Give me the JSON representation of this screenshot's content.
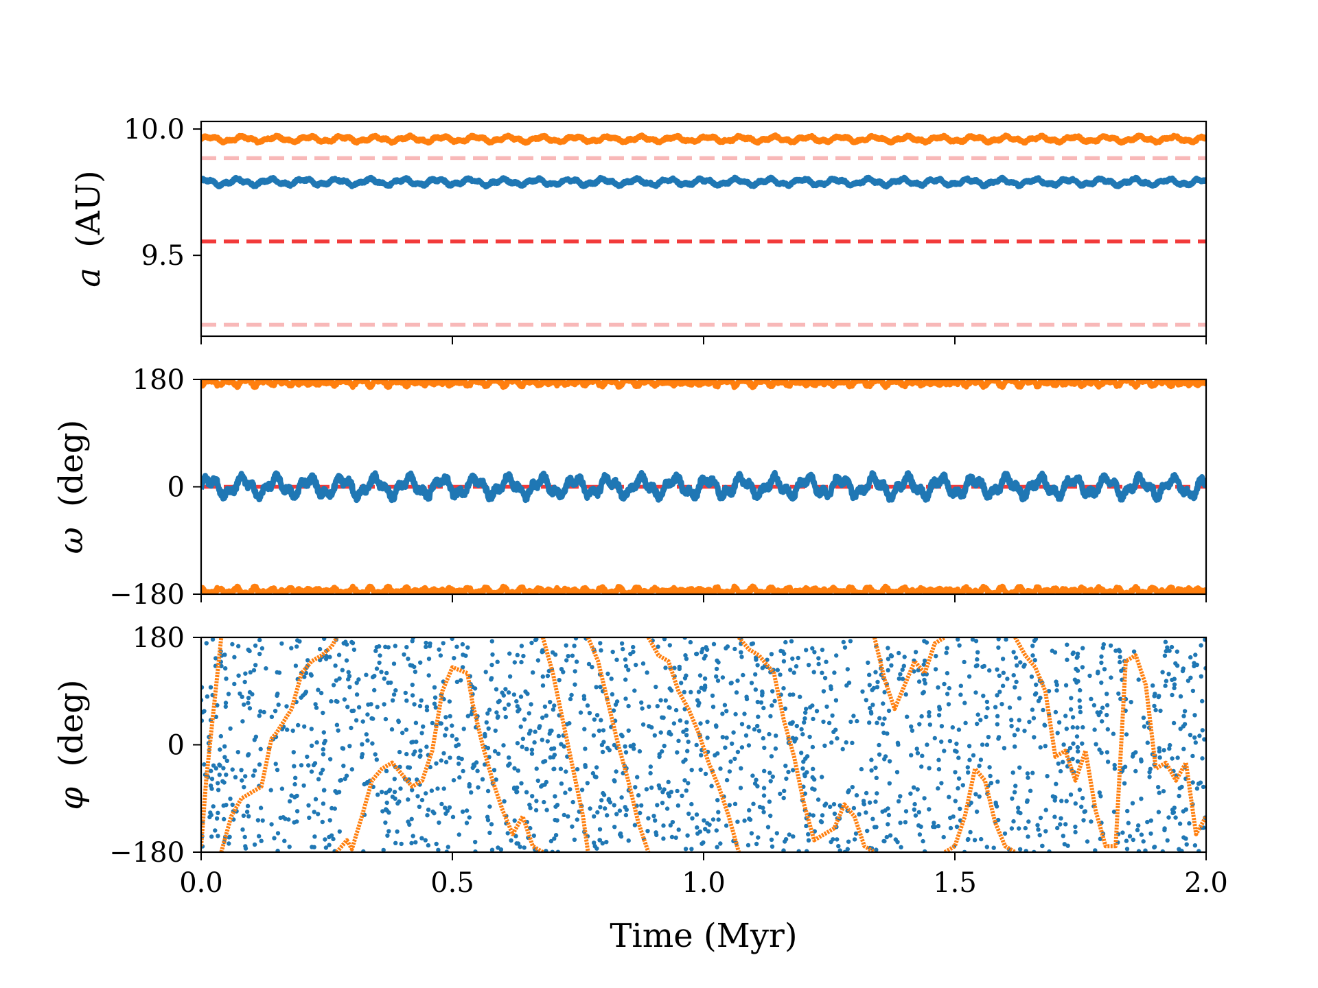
{
  "chart_data": [
    {
      "type": "scatter",
      "panel": "top",
      "ylabel_symbol": "a",
      "ylabel_unit": "(AU)",
      "xlim": [
        0,
        2
      ],
      "ylim": [
        9.18,
        10.03
      ],
      "yticks": [
        {
          "value": 9.5,
          "label": "9.5"
        },
        {
          "value": 10.0,
          "label": "10.0"
        }
      ],
      "reference_lines": [
        {
          "y": 9.885,
          "color": "#f8b8b8",
          "style": "dashed"
        },
        {
          "y": 9.555,
          "color": "#f23a3a",
          "style": "dashed"
        },
        {
          "y": 9.225,
          "color": "#f8b8b8",
          "style": "dashed"
        }
      ],
      "series": [
        {
          "color": "#ff7f0e",
          "mean": 9.96,
          "amplitude": 0.012
        },
        {
          "color": "#1f77b4",
          "mean": 9.79,
          "amplitude": 0.014
        }
      ]
    },
    {
      "type": "scatter",
      "panel": "middle",
      "ylabel_symbol": "ω",
      "ylabel_unit": "(deg)",
      "xlim": [
        0,
        2
      ],
      "ylim": [
        -180,
        180
      ],
      "yticks": [
        {
          "value": -180,
          "label": "−180"
        },
        {
          "value": 0,
          "label": "0"
        },
        {
          "value": 180,
          "label": "180"
        }
      ],
      "reference_lines": [
        {
          "y": 0,
          "color": "#f23a3a",
          "style": "dashed"
        }
      ],
      "series": [
        {
          "color": "#1f77b4",
          "mean": 0,
          "amplitude": 18
        },
        {
          "color": "#ff7f0e",
          "mean": 180,
          "amplitude": 10,
          "wraps": true
        }
      ]
    },
    {
      "type": "scatter",
      "panel": "bottom",
      "ylabel_symbol": "φ",
      "ylabel_unit": "(deg)",
      "xlabel": "Time (Myr)",
      "xlim": [
        0,
        2
      ],
      "ylim": [
        -180,
        180
      ],
      "xticks": [
        {
          "value": 0.0,
          "label": "0.0"
        },
        {
          "value": 0.5,
          "label": "0.5"
        },
        {
          "value": 1.0,
          "label": "1.0"
        },
        {
          "value": 1.5,
          "label": "1.5"
        },
        {
          "value": 2.0,
          "label": "2.0"
        }
      ],
      "yticks": [
        {
          "value": -180,
          "label": "−180"
        },
        {
          "value": 0,
          "label": "0"
        },
        {
          "value": 180,
          "label": "180"
        }
      ],
      "series": [
        {
          "color": "#1f77b4",
          "distribution": "uniform",
          "points": 1900
        },
        {
          "color": "#ff7f0e",
          "distribution": "circulating",
          "path": [
            [
              0.0,
              -170
            ],
            [
              0.01,
              -60
            ],
            [
              0.02,
              20
            ],
            [
              0.03,
              100
            ],
            [
              0.04,
              180
            ],
            [
              0.04,
              -180
            ],
            [
              0.06,
              -120
            ],
            [
              0.08,
              -90
            ],
            [
              0.1,
              -80
            ],
            [
              0.12,
              -70
            ],
            [
              0.14,
              10
            ],
            [
              0.15,
              20
            ],
            [
              0.18,
              60
            ],
            [
              0.2,
              120
            ],
            [
              0.22,
              140
            ],
            [
              0.24,
              150
            ],
            [
              0.26,
              165
            ],
            [
              0.27,
              180
            ],
            [
              0.27,
              -180
            ],
            [
              0.29,
              -160
            ],
            [
              0.3,
              -175
            ],
            [
              0.32,
              -120
            ],
            [
              0.34,
              -60
            ],
            [
              0.36,
              -40
            ],
            [
              0.38,
              -30
            ],
            [
              0.42,
              -70
            ],
            [
              0.44,
              -60
            ],
            [
              0.46,
              -10
            ],
            [
              0.48,
              90
            ],
            [
              0.5,
              130
            ],
            [
              0.53,
              120
            ],
            [
              0.54,
              70
            ],
            [
              0.56,
              0
            ],
            [
              0.58,
              -60
            ],
            [
              0.6,
              -110
            ],
            [
              0.62,
              -150
            ],
            [
              0.64,
              -120
            ],
            [
              0.66,
              -170
            ],
            [
              0.68,
              -180
            ],
            [
              0.68,
              180
            ],
            [
              0.7,
              120
            ],
            [
              0.72,
              40
            ],
            [
              0.74,
              -40
            ],
            [
              0.76,
              -120
            ],
            [
              0.77,
              -180
            ],
            [
              0.77,
              180
            ],
            [
              0.79,
              140
            ],
            [
              0.81,
              70
            ],
            [
              0.83,
              0
            ],
            [
              0.85,
              -60
            ],
            [
              0.87,
              -130
            ],
            [
              0.89,
              -180
            ],
            [
              0.89,
              180
            ],
            [
              0.91,
              150
            ],
            [
              0.93,
              140
            ],
            [
              0.95,
              90
            ],
            [
              0.97,
              60
            ],
            [
              0.99,
              20
            ],
            [
              1.01,
              -30
            ],
            [
              1.03,
              -70
            ],
            [
              1.05,
              -120
            ],
            [
              1.07,
              -180
            ],
            [
              1.07,
              180
            ],
            [
              1.09,
              160
            ],
            [
              1.11,
              150
            ],
            [
              1.14,
              120
            ],
            [
              1.16,
              40
            ],
            [
              1.18,
              -20
            ],
            [
              1.2,
              -100
            ],
            [
              1.22,
              -160
            ],
            [
              1.24,
              -150
            ],
            [
              1.26,
              -140
            ],
            [
              1.28,
              -100
            ],
            [
              1.3,
              -120
            ],
            [
              1.32,
              -170
            ],
            [
              1.34,
              -180
            ],
            [
              1.34,
              180
            ],
            [
              1.36,
              110
            ],
            [
              1.38,
              60
            ],
            [
              1.4,
              100
            ],
            [
              1.42,
              140
            ],
            [
              1.44,
              120
            ],
            [
              1.46,
              170
            ],
            [
              1.48,
              180
            ],
            [
              1.48,
              -180
            ],
            [
              1.5,
              -170
            ],
            [
              1.52,
              -120
            ],
            [
              1.54,
              -40
            ],
            [
              1.56,
              -60
            ],
            [
              1.58,
              -130
            ],
            [
              1.6,
              -170
            ],
            [
              1.62,
              -180
            ],
            [
              1.62,
              180
            ],
            [
              1.64,
              150
            ],
            [
              1.66,
              130
            ],
            [
              1.68,
              90
            ],
            [
              1.7,
              -20
            ],
            [
              1.72,
              -10
            ],
            [
              1.74,
              -60
            ],
            [
              1.76,
              -10
            ],
            [
              1.78,
              -110
            ],
            [
              1.8,
              -170
            ],
            [
              1.82,
              -170
            ],
            [
              1.84,
              140
            ],
            [
              1.86,
              150
            ],
            [
              1.88,
              100
            ],
            [
              1.9,
              -40
            ],
            [
              1.92,
              -30
            ],
            [
              1.94,
              -60
            ],
            [
              1.96,
              -30
            ],
            [
              1.98,
              -150
            ],
            [
              2.0,
              -120
            ]
          ]
        }
      ]
    }
  ]
}
